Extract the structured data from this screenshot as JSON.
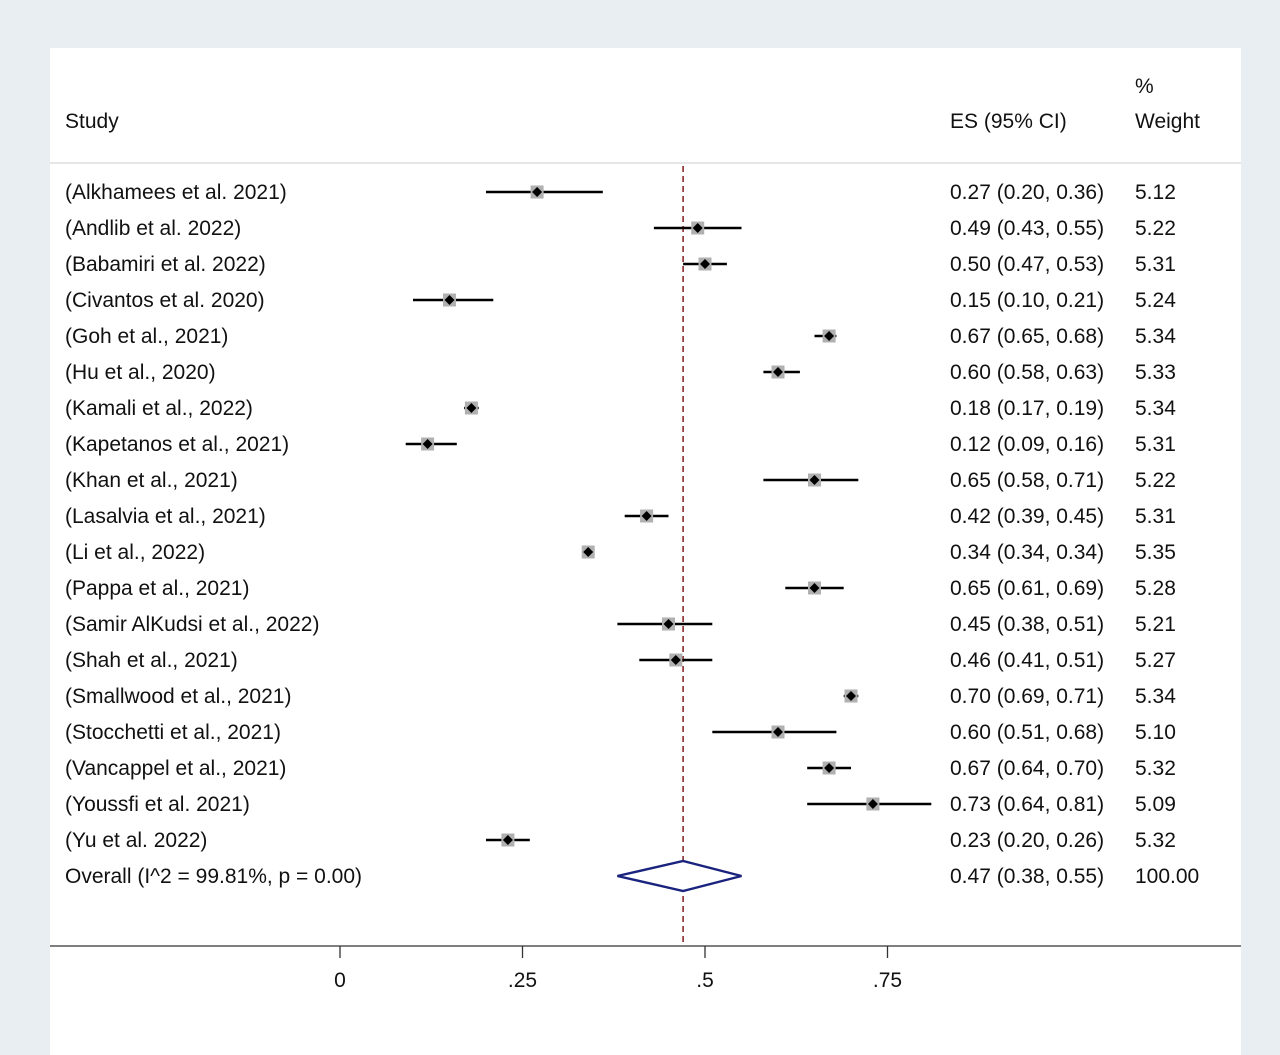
{
  "chart_data": {
    "type": "forest",
    "header": {
      "study_label": "Study",
      "es_label": "ES (95% CI)",
      "weight_label_line1": "%",
      "weight_label_line2": "Weight"
    },
    "xaxis": {
      "ticks": [
        0,
        0.25,
        0.5,
        0.75
      ],
      "tick_labels": [
        "0",
        ".25",
        ".5",
        ".75"
      ],
      "range": [
        0,
        0.81
      ]
    },
    "reference_line": 0.47,
    "studies": [
      {
        "label": "(Alkhamees et al. 2021)",
        "es": 0.27,
        "lo": 0.2,
        "hi": 0.36,
        "es_text": "0.27 (0.20, 0.36)",
        "weight": 5.12,
        "weight_text": "5.12"
      },
      {
        "label": "(Andlib et al. 2022)",
        "es": 0.49,
        "lo": 0.43,
        "hi": 0.55,
        "es_text": "0.49 (0.43, 0.55)",
        "weight": 5.22,
        "weight_text": "5.22"
      },
      {
        "label": "(Babamiri et al. 2022)",
        "es": 0.5,
        "lo": 0.47,
        "hi": 0.53,
        "es_text": "0.50 (0.47, 0.53)",
        "weight": 5.31,
        "weight_text": "5.31"
      },
      {
        "label": "(Civantos et al. 2020)",
        "es": 0.15,
        "lo": 0.1,
        "hi": 0.21,
        "es_text": "0.15 (0.10, 0.21)",
        "weight": 5.24,
        "weight_text": "5.24"
      },
      {
        "label": "(Goh et al., 2021)",
        "es": 0.67,
        "lo": 0.65,
        "hi": 0.68,
        "es_text": "0.67 (0.65, 0.68)",
        "weight": 5.34,
        "weight_text": "5.34"
      },
      {
        "label": "(Hu et al., 2020)",
        "es": 0.6,
        "lo": 0.58,
        "hi": 0.63,
        "es_text": "0.60 (0.58, 0.63)",
        "weight": 5.33,
        "weight_text": "5.33"
      },
      {
        "label": "(Kamali et al., 2022)",
        "es": 0.18,
        "lo": 0.17,
        "hi": 0.19,
        "es_text": "0.18 (0.17, 0.19)",
        "weight": 5.34,
        "weight_text": "5.34"
      },
      {
        "label": "(Kapetanos et al., 2021)",
        "es": 0.12,
        "lo": 0.09,
        "hi": 0.16,
        "es_text": "0.12 (0.09, 0.16)",
        "weight": 5.31,
        "weight_text": "5.31"
      },
      {
        "label": "(Khan et al., 2021)",
        "es": 0.65,
        "lo": 0.58,
        "hi": 0.71,
        "es_text": "0.65 (0.58, 0.71)",
        "weight": 5.22,
        "weight_text": "5.22"
      },
      {
        "label": "(Lasalvia et al., 2021)",
        "es": 0.42,
        "lo": 0.39,
        "hi": 0.45,
        "es_text": "0.42 (0.39, 0.45)",
        "weight": 5.31,
        "weight_text": "5.31"
      },
      {
        "label": "(Li et al., 2022)",
        "es": 0.34,
        "lo": 0.34,
        "hi": 0.34,
        "es_text": "0.34 (0.34, 0.34)",
        "weight": 5.35,
        "weight_text": "5.35"
      },
      {
        "label": "(Pappa et al., 2021)",
        "es": 0.65,
        "lo": 0.61,
        "hi": 0.69,
        "es_text": "0.65 (0.61, 0.69)",
        "weight": 5.28,
        "weight_text": "5.28"
      },
      {
        "label": "(Samir AlKudsi et al., 2022)",
        "es": 0.45,
        "lo": 0.38,
        "hi": 0.51,
        "es_text": "0.45 (0.38, 0.51)",
        "weight": 5.21,
        "weight_text": "5.21"
      },
      {
        "label": "(Shah et al., 2021)",
        "es": 0.46,
        "lo": 0.41,
        "hi": 0.51,
        "es_text": "0.46 (0.41, 0.51)",
        "weight": 5.27,
        "weight_text": "5.27"
      },
      {
        "label": "(Smallwood et al., 2021)",
        "es": 0.7,
        "lo": 0.69,
        "hi": 0.71,
        "es_text": "0.70 (0.69, 0.71)",
        "weight": 5.34,
        "weight_text": "5.34"
      },
      {
        "label": "(Stocchetti et al., 2021)",
        "es": 0.6,
        "lo": 0.51,
        "hi": 0.68,
        "es_text": "0.60 (0.51, 0.68)",
        "weight": 5.1,
        "weight_text": "5.10"
      },
      {
        "label": "(Vancappel et al., 2021)",
        "es": 0.67,
        "lo": 0.64,
        "hi": 0.7,
        "es_text": "0.67 (0.64, 0.70)",
        "weight": 5.32,
        "weight_text": "5.32"
      },
      {
        "label": "(Youssfi et al. 2021)",
        "es": 0.73,
        "lo": 0.64,
        "hi": 0.81,
        "es_text": "0.73 (0.64, 0.81)",
        "weight": 5.09,
        "weight_text": "5.09"
      },
      {
        "label": "(Yu et al. 2022)",
        "es": 0.23,
        "lo": 0.2,
        "hi": 0.26,
        "es_text": "0.23 (0.20, 0.26)",
        "weight": 5.32,
        "weight_text": "5.32"
      }
    ],
    "overall": {
      "label": "Overall  (I^2 = 99.81%, p = 0.00)",
      "es": 0.47,
      "lo": 0.38,
      "hi": 0.55,
      "es_text": "0.47 (0.38, 0.55)",
      "weight_text": "100.00"
    },
    "colors": {
      "reference_line": "#8b2a2a",
      "diamond": "#1a237e",
      "weight_box": "#b0b0b0",
      "marker": "#000000",
      "axis": "#333333"
    }
  }
}
